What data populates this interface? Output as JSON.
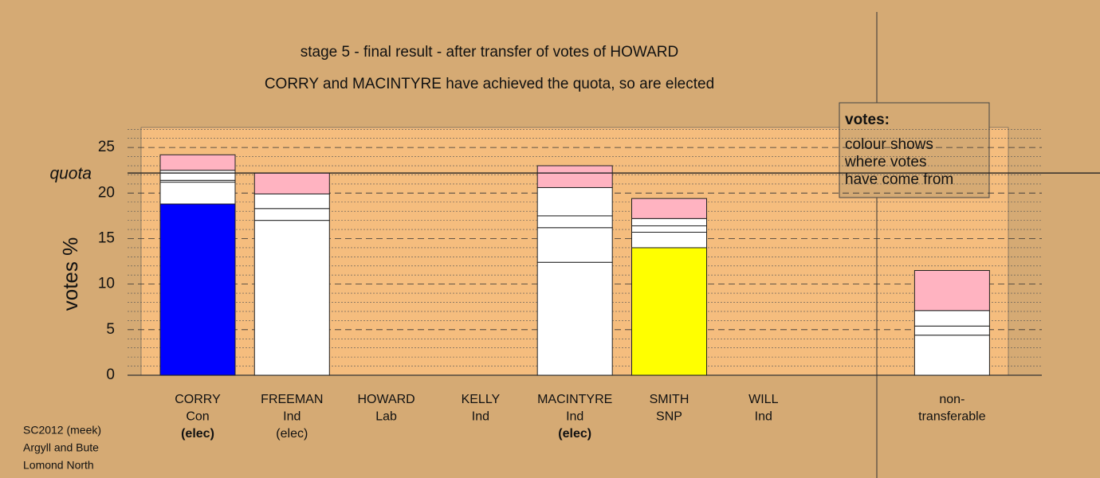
{
  "chart_data": {
    "type": "stacked_bar",
    "title": "stage 5 - final result - after transfer of votes of HOWARD",
    "subtitle": "CORRY and MACINTYRE have achieved the quota, so are elected",
    "y_label": "votes %",
    "quota": {
      "value": 22.2,
      "label": "quota"
    },
    "ylim": [
      0,
      27.2
    ],
    "yticks": [
      0,
      5,
      10,
      15,
      20,
      25
    ],
    "minor_gridlines": [
      1,
      2,
      3,
      4,
      6,
      7,
      8,
      9,
      11,
      12,
      13,
      14,
      16,
      17,
      18,
      19,
      21,
      22,
      23,
      24,
      26,
      27
    ],
    "stacks": [
      {
        "label": [
          "CORRY",
          "Con",
          "(elec)"
        ],
        "highlight": true,
        "values": [
          18.8,
          2.4,
          0.2,
          1.1,
          1.7
        ],
        "colors": [
          "#0000ff",
          "#ffffff",
          "#ffffff",
          "#ffffff",
          "#ffb3c1"
        ]
      },
      {
        "label": [
          "FREEMAN",
          "Ind",
          "(elec)"
        ],
        "highlight": false,
        "values": [
          17.0,
          1.3,
          1.6,
          2.3
        ],
        "colors": [
          "#ffffff",
          "#ffffff",
          "#ffffff",
          "#ffb3c1"
        ]
      },
      {
        "label": [
          "HOWARD",
          "Lab"
        ],
        "highlight": false,
        "values": [
          0
        ],
        "colors": [
          "#ffffff"
        ]
      },
      {
        "label": [
          "KELLY",
          "Ind"
        ],
        "highlight": false,
        "values": [
          0
        ],
        "colors": [
          "#ffffff"
        ]
      },
      {
        "label": [
          "MACINTYRE",
          "Ind",
          "(elec)"
        ],
        "highlight": true,
        "values": [
          12.4,
          3.8,
          1.3,
          3.1,
          2.4
        ],
        "colors": [
          "#ffffff",
          "#ffffff",
          "#ffffff",
          "#ffffff",
          "#ffb3c1"
        ]
      },
      {
        "label": [
          "SMITH",
          "SNP"
        ],
        "highlight": false,
        "values": [
          14.0,
          1.7,
          0.7,
          0.8,
          2.2
        ],
        "colors": [
          "#ffff00",
          "#ffffff",
          "#ffffff",
          "#ffffff",
          "#ffb3c1"
        ]
      },
      {
        "label": [
          "WILL",
          "Ind"
        ],
        "highlight": false,
        "values": [
          0
        ],
        "colors": [
          "#ffffff"
        ]
      },
      {
        "label": [
          "non-",
          "transferable"
        ],
        "highlight": false,
        "values": [
          4.4,
          1.0,
          1.7,
          4.4
        ],
        "colors": [
          "#ffffff",
          "#ffffff",
          "#ffffff",
          "#ffb3c1"
        ]
      }
    ],
    "note": {
      "title": "votes:",
      "lines": [
        "colour shows",
        "where votes",
        "have come from"
      ]
    },
    "footer": [
      "SC2012 (meek)",
      "Argyll and Bute",
      "Lomond North"
    ]
  }
}
